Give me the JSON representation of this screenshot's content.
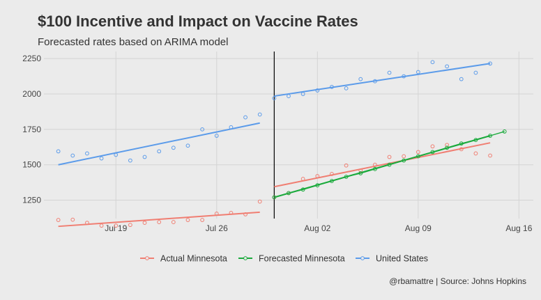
{
  "chart_data": {
    "type": "line",
    "title": "$100 Incentive and Impact on Vaccine Rates",
    "subtitle": "Forecasted rates based on ARIMA model",
    "caption": "@rbamattre | Source: Johns Hopkins",
    "xlabel": "",
    "ylabel": "",
    "x_ticks": [
      "Jul 19",
      "Jul 26",
      "Aug 02",
      "Aug 09",
      "Aug 16"
    ],
    "y_ticks": [
      "1250",
      "1500",
      "1750",
      "2000",
      "2250"
    ],
    "xlim": [
      "2021-07-14",
      "2021-08-17"
    ],
    "ylim": [
      1120,
      2300
    ],
    "grid": true,
    "legend_position": "bottom",
    "vline": "2021-07-30",
    "series": [
      {
        "name": "Actual Minnesota",
        "color": "#f07e72",
        "x": [
          "2021-07-15",
          "2021-07-16",
          "2021-07-17",
          "2021-07-18",
          "2021-07-19",
          "2021-07-20",
          "2021-07-21",
          "2021-07-22",
          "2021-07-23",
          "2021-07-24",
          "2021-07-25",
          "2021-07-26",
          "2021-07-27",
          "2021-07-28",
          "2021-07-29",
          "2021-07-30",
          "2021-07-31",
          "2021-08-01",
          "2021-08-02",
          "2021-08-03",
          "2021-08-04",
          "2021-08-05",
          "2021-08-06",
          "2021-08-07",
          "2021-08-08",
          "2021-08-09",
          "2021-08-10",
          "2021-08-11",
          "2021-08-12",
          "2021-08-13",
          "2021-08-14"
        ],
        "y": [
          1110,
          1112,
          1090,
          1070,
          1070,
          1075,
          1090,
          1095,
          1095,
          1110,
          1110,
          1155,
          1160,
          1150,
          1240,
          1270,
          1300,
          1400,
          1420,
          1435,
          1495,
          1460,
          1500,
          1555,
          1560,
          1590,
          1630,
          1640,
          1610,
          1580,
          1565
        ],
        "trend": [
          [
            "2021-07-15",
            1065
          ],
          [
            "2021-07-29",
            1165
          ],
          [
            "2021-07-30",
            1345
          ],
          [
            "2021-08-14",
            1655
          ]
        ]
      },
      {
        "name": "Forecasted Minnesota",
        "color": "#1aaa3c",
        "x": [
          "2021-07-30",
          "2021-07-31",
          "2021-08-01",
          "2021-08-02",
          "2021-08-03",
          "2021-08-04",
          "2021-08-05",
          "2021-08-06",
          "2021-08-07",
          "2021-08-08",
          "2021-08-09",
          "2021-08-10",
          "2021-08-11",
          "2021-08-12",
          "2021-08-13",
          "2021-08-14",
          "2021-08-15"
        ],
        "y": [
          1270,
          1300,
          1325,
          1355,
          1385,
          1415,
          1440,
          1470,
          1500,
          1530,
          1560,
          1590,
          1620,
          1650,
          1675,
          1705,
          1735
        ],
        "trend": [
          [
            "2021-07-30",
            1270
          ],
          [
            "2021-08-14",
            1705
          ]
        ]
      },
      {
        "name": "United States",
        "color": "#5b9bea",
        "x": [
          "2021-07-15",
          "2021-07-16",
          "2021-07-17",
          "2021-07-18",
          "2021-07-19",
          "2021-07-20",
          "2021-07-21",
          "2021-07-22",
          "2021-07-23",
          "2021-07-24",
          "2021-07-25",
          "2021-07-26",
          "2021-07-27",
          "2021-07-28",
          "2021-07-29",
          "2021-07-30",
          "2021-07-31",
          "2021-08-01",
          "2021-08-02",
          "2021-08-03",
          "2021-08-04",
          "2021-08-05",
          "2021-08-06",
          "2021-08-07",
          "2021-08-08",
          "2021-08-09",
          "2021-08-10",
          "2021-08-11",
          "2021-08-12",
          "2021-08-13",
          "2021-08-14"
        ],
        "y": [
          1595,
          1565,
          1580,
          1545,
          1570,
          1530,
          1555,
          1595,
          1620,
          1635,
          1750,
          1705,
          1765,
          1835,
          1855,
          1970,
          1985,
          2000,
          2025,
          2050,
          2040,
          2105,
          2090,
          2150,
          2125,
          2155,
          2225,
          2195,
          2105,
          2150,
          2215
        ],
        "trend": [
          [
            "2021-07-15",
            1500
          ],
          [
            "2021-07-29",
            1795
          ],
          [
            "2021-07-30",
            1985
          ],
          [
            "2021-08-14",
            2215
          ]
        ]
      }
    ]
  }
}
